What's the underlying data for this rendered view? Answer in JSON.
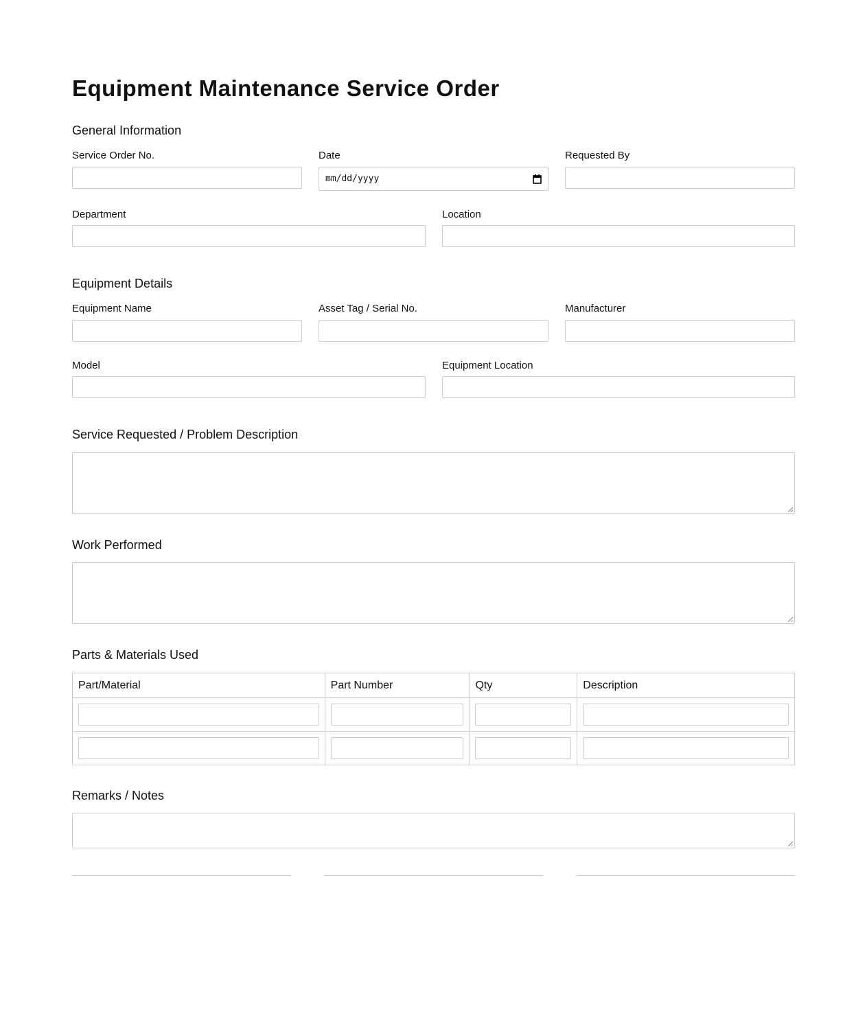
{
  "title": "Equipment Maintenance Service Order",
  "general": {
    "heading": "General Information",
    "service_order_label": "Service Order No.",
    "date_label": "Date",
    "date_placeholder": "mm/dd/yyyy",
    "requested_by_label": "Requested By",
    "department_label": "Department",
    "location_label": "Location"
  },
  "equipment": {
    "heading": "Equipment Details",
    "name_label": "Equipment Name",
    "asset_label": "Asset Tag / Serial No.",
    "manufacturer_label": "Manufacturer",
    "model_label": "Model",
    "location_label": "Equipment Location"
  },
  "service_requested": {
    "heading": "Service Requested / Problem Description"
  },
  "work_performed": {
    "heading": "Work Performed"
  },
  "parts": {
    "heading": "Parts & Materials Used",
    "columns": [
      "Part/Material",
      "Part Number",
      "Qty",
      "Description"
    ]
  },
  "remarks": {
    "heading": "Remarks / Notes"
  },
  "icons": {
    "date_picker": "calendar-icon"
  }
}
